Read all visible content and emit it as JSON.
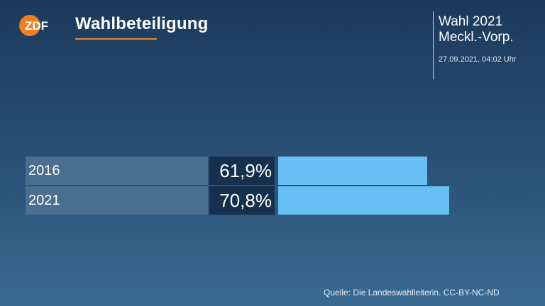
{
  "header": {
    "logo_text": "ZDF",
    "title": "Wahlbeteiligung",
    "election_line1": "Wahl 2021",
    "election_line2": "Meckl.-Vorp.",
    "timestamp": "27.09.2021, 04:02 Uhr"
  },
  "colors": {
    "logo_orange": "#f07e26",
    "bar": "#68bff3",
    "label_bg": "#4a6e8e",
    "value_bg": "#15304d"
  },
  "chart_data": {
    "type": "bar",
    "orientation": "horizontal",
    "categories": [
      "2016",
      "2021"
    ],
    "values": [
      61.9,
      70.8
    ],
    "value_labels": [
      "61,9%",
      "70,8%"
    ],
    "unit": "%",
    "title": "Wahlbeteiligung"
  },
  "footer": {
    "source": "Quelle: Die Landeswahlleiterin. CC-BY-NC-ND"
  }
}
